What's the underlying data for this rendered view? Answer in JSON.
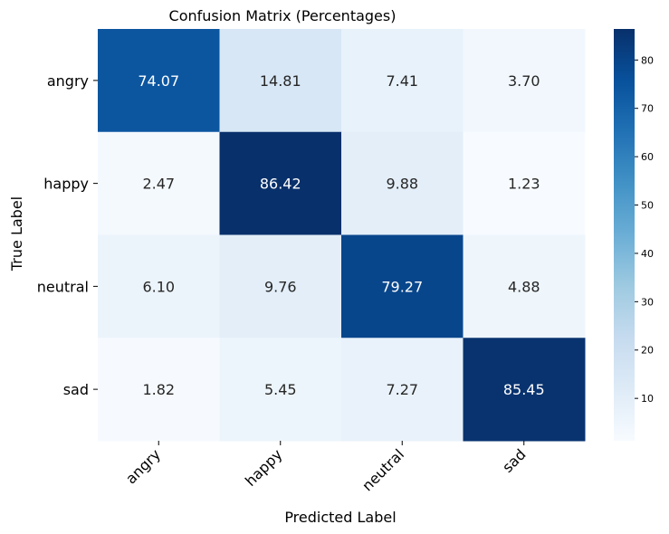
{
  "chart_data": {
    "type": "heatmap",
    "title": "Confusion Matrix (Percentages)",
    "xlabel": "Predicted Label",
    "ylabel": "True Label",
    "x_categories": [
      "angry",
      "happy",
      "neutral",
      "sad"
    ],
    "y_categories": [
      "angry",
      "happy",
      "neutral",
      "sad"
    ],
    "values": [
      [
        74.07,
        14.81,
        7.41,
        3.7
      ],
      [
        2.47,
        86.42,
        9.88,
        1.23
      ],
      [
        6.1,
        9.76,
        79.27,
        4.88
      ],
      [
        1.82,
        5.45,
        7.27,
        85.45
      ]
    ],
    "value_labels": [
      [
        "74.07",
        "14.81",
        "7.41",
        "3.70"
      ],
      [
        "2.47",
        "86.42",
        "9.88",
        "1.23"
      ],
      [
        "6.10",
        "9.76",
        "79.27",
        "4.88"
      ],
      [
        "1.82",
        "5.45",
        "7.27",
        "85.45"
      ]
    ],
    "colormap": "Blues",
    "colorbar": {
      "range": [
        1.23,
        86.42
      ],
      "ticks": [
        10,
        20,
        30,
        40,
        50,
        60,
        70,
        80
      ]
    }
  }
}
